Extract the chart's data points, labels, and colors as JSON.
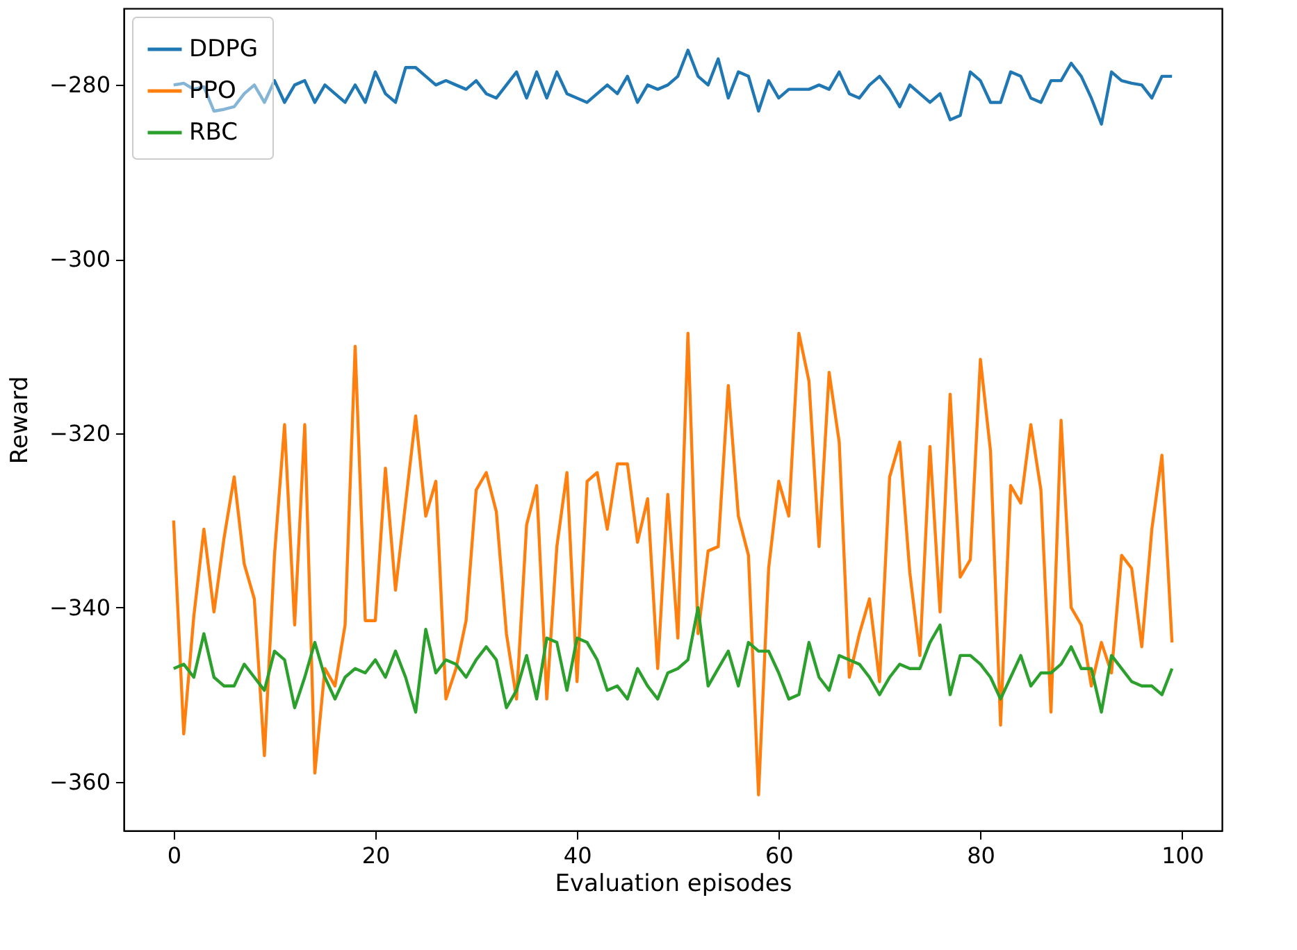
{
  "chart_data": {
    "type": "line",
    "xlabel": "Evaluation episodes",
    "ylabel": "Reward",
    "x": [
      0,
      1,
      2,
      3,
      4,
      5,
      6,
      7,
      8,
      9,
      10,
      11,
      12,
      13,
      14,
      15,
      16,
      17,
      18,
      19,
      20,
      21,
      22,
      23,
      24,
      25,
      26,
      27,
      28,
      29,
      30,
      31,
      32,
      33,
      34,
      35,
      36,
      37,
      38,
      39,
      40,
      41,
      42,
      43,
      44,
      45,
      46,
      47,
      48,
      49,
      50,
      51,
      52,
      53,
      54,
      55,
      56,
      57,
      58,
      59,
      60,
      61,
      62,
      63,
      64,
      65,
      66,
      67,
      68,
      69,
      70,
      71,
      72,
      73,
      74,
      75,
      76,
      77,
      78,
      79,
      80,
      81,
      82,
      83,
      84,
      85,
      86,
      87,
      88,
      89,
      90,
      91,
      92,
      93,
      94,
      95,
      96,
      97,
      98,
      99
    ],
    "xlim": [
      -4.95,
      103.95
    ],
    "xticks": [
      0,
      20,
      40,
      60,
      80,
      100
    ],
    "ylim": [
      -365.6,
      -271.2
    ],
    "yticks": [
      {
        "value": -280,
        "label": "−280"
      },
      {
        "value": -300,
        "label": "−300"
      },
      {
        "value": -320,
        "label": "−320"
      },
      {
        "value": -340,
        "label": "−340"
      },
      {
        "value": -360,
        "label": "−360"
      }
    ],
    "grid": false,
    "legend": "top left",
    "line_style": "solid",
    "marker": "none",
    "series": [
      {
        "name": "DDPG",
        "color": "#1f77b4",
        "values": [
          -280,
          -279.8,
          -280.5,
          -280.2,
          -283,
          -282.8,
          -282.5,
          -281,
          -280,
          -282,
          -279.5,
          -282,
          -280,
          -279.5,
          -282,
          -280,
          -281,
          -282,
          -280,
          -282,
          -278.5,
          -281,
          -282,
          -278,
          -278,
          -279,
          -280,
          -279.5,
          -280,
          -280.5,
          -279.5,
          -281,
          -281.5,
          -280,
          -278.5,
          -281.5,
          -278.5,
          -281.5,
          -278.5,
          -281,
          -281.5,
          -282,
          -281,
          -280,
          -281,
          -279,
          -282,
          -280,
          -280.5,
          -280,
          -279,
          -276,
          -279,
          -280,
          -277,
          -281.5,
          -278.5,
          -279,
          -283,
          -279.5,
          -281.5,
          -280.5,
          -280.5,
          -280.5,
          -280,
          -280.5,
          -278.5,
          -281,
          -281.5,
          -280,
          -279,
          -280.5,
          -282.5,
          -280,
          -281,
          -282,
          -281,
          -284,
          -283.5,
          -278.5,
          -279.5,
          -282,
          -282,
          -278.5,
          -279,
          -281.5,
          -282,
          -279.5,
          -279.5,
          -277.5,
          -279,
          -281.5,
          -284.5,
          -278.5,
          -279.5,
          -279.8,
          -280,
          -281.5,
          -279,
          -279
        ]
      },
      {
        "name": "PPO",
        "color": "#ff7f0e",
        "values": [
          -330,
          -354.5,
          -341,
          -331,
          -340.5,
          -332,
          -325,
          -335,
          -339,
          -357,
          -334,
          -319,
          -342,
          -319,
          -359,
          -347,
          -349,
          -342,
          -310,
          -341.5,
          -341.5,
          -324,
          -338,
          -328,
          -318,
          -329.5,
          -325.5,
          -350.5,
          -347,
          -341.5,
          -326.5,
          -324.5,
          -329,
          -343,
          -350.5,
          -330.5,
          -326,
          -350.5,
          -333,
          -324.5,
          -348.5,
          -325.5,
          -324.5,
          -331,
          -323.5,
          -323.5,
          -332.5,
          -327.5,
          -347,
          -327,
          -343.5,
          -308.5,
          -343,
          -333.5,
          -333,
          -314.5,
          -329.5,
          -334,
          -361.5,
          -335.5,
          -325.5,
          -329.5,
          -308.5,
          -314,
          -333,
          -313,
          -321,
          -348,
          -343,
          -339,
          -348.5,
          -325,
          -321,
          -336,
          -345.5,
          -321.5,
          -340.5,
          -315.5,
          -336.5,
          -334.5,
          -311.5,
          -322,
          -353.5,
          -326,
          -328,
          -319,
          -326.5,
          -352,
          -318.5,
          -340,
          -342,
          -349,
          -344,
          -347.5,
          -334,
          -335.5,
          -344.5,
          -331,
          -322.5,
          -344
        ]
      },
      {
        "name": "RBC",
        "color": "#2ca02c",
        "values": [
          -347,
          -346.5,
          -348,
          -343,
          -348,
          -349,
          -349,
          -346.5,
          -348,
          -349.5,
          -345,
          -346,
          -351.5,
          -348,
          -344,
          -348,
          -350.5,
          -348,
          -347,
          -347.5,
          -346,
          -348,
          -345,
          -348,
          -352,
          -342.5,
          -347.5,
          -346,
          -346.5,
          -348,
          -346,
          -344.5,
          -346,
          -351.5,
          -349.5,
          -345.5,
          -350.5,
          -343.5,
          -344,
          -349.5,
          -343.5,
          -344,
          -346,
          -349.5,
          -349,
          -350.5,
          -347,
          -349,
          -350.5,
          -347.5,
          -347,
          -346,
          -340,
          -349,
          -347,
          -345,
          -349,
          -344,
          -345,
          -345,
          -347.5,
          -350.5,
          -350,
          -344,
          -348,
          -349.5,
          -345.5,
          -346,
          -346.5,
          -348,
          -350,
          -348,
          -346.5,
          -347,
          -347,
          -344,
          -342,
          -350,
          -345.5,
          -345.5,
          -346.5,
          -348,
          -350.5,
          -348,
          -345.5,
          -349,
          -347.5,
          -347.5,
          -346.5,
          -344.5,
          -347,
          -347,
          -352,
          -345.5,
          -347,
          -348.5,
          -349,
          -349,
          -350,
          -347
        ]
      }
    ]
  }
}
